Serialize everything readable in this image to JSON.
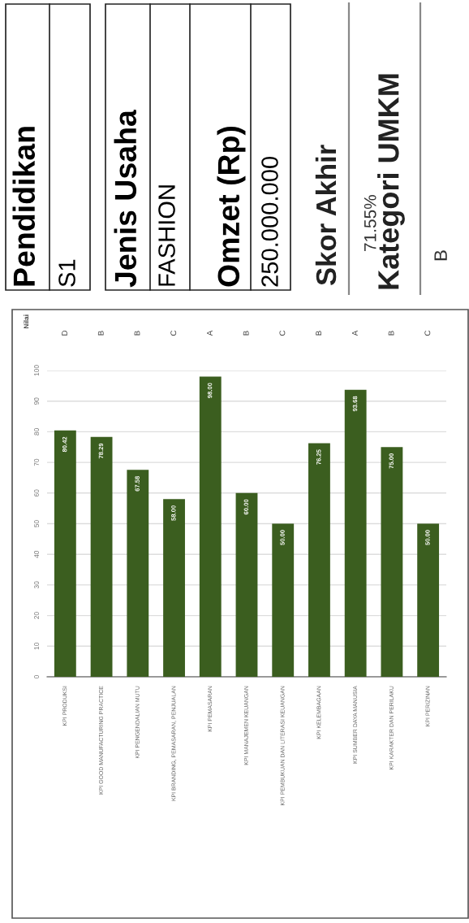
{
  "chart_data": [
    {
      "type": "other",
      "annotations": [
        "Pendidikan",
        "S1",
        "Jenis Usaha",
        "FASHION",
        "Omzet (Rp)",
        "250.000.000",
        "Skor Akhir",
        "71.55%",
        "Kategori UMKM",
        "B"
      ]
    },
    {
      "type": "bar",
      "categories": [
        "KPI PRODUKSI",
        "KPI GOOD MANUFACTURING PRACTICE",
        "KPI PENGENDALIAN MUTU",
        "KPI BRANDING, PEMASARAN, PENJUALAN",
        "KPI PEMASARAN",
        "KPI MANAJEMEN KEUANGAN",
        "KPI PEMBUKUAN DAN LITERASI KEUANGAN",
        "KPI KELEMBAGAAN",
        "KPI SUMBER DAYA MANUSIA",
        "KPI KARAKTER DAN PERILAKU",
        "KPI PERIZINAN"
      ],
      "values": [
        80.42,
        78.29,
        67.58,
        58.0,
        98.0,
        60.0,
        50.0,
        76.25,
        93.68,
        75.0,
        50.0
      ],
      "value_labels": [
        "80.42",
        "78.29",
        "67.58",
        "58.00",
        "98.00",
        "60.00",
        "50.00",
        "76.25",
        "93.68",
        "75.00",
        "50.00"
      ],
      "color": "#3b5e1f",
      "ylim": [
        0,
        100
      ],
      "yticks": [
        0,
        10,
        20,
        30,
        40,
        50,
        60,
        70,
        80,
        90,
        100
      ],
      "grid": "y",
      "annotations": [
        "Nilai",
        "D",
        "B",
        "B",
        "C",
        "A",
        "B",
        "C",
        "B",
        "A",
        "B",
        "C"
      ]
    }
  ]
}
